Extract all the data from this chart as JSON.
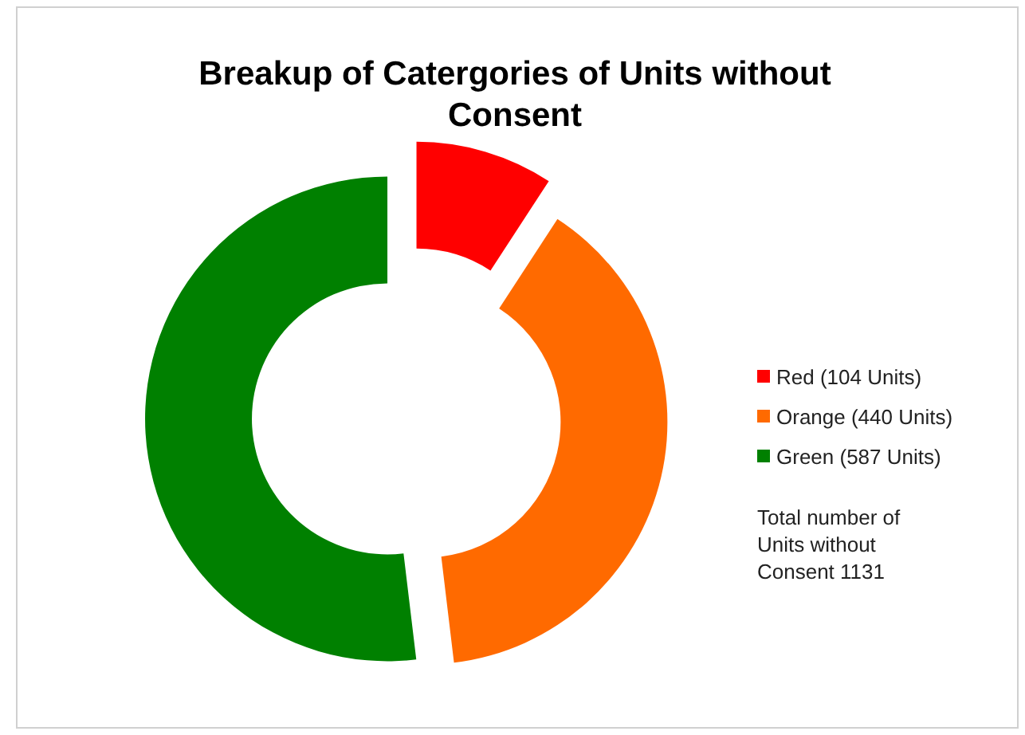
{
  "chart_data": {
    "type": "donut",
    "title": "Breakup of Catergories of Units without Consent",
    "categories": [
      "Red (104 Units)",
      "Orange (440 Units)",
      "Green (587 Units)"
    ],
    "values": [
      104,
      440,
      587
    ],
    "colors": [
      "#ff0000",
      "#ff6a00",
      "#008000"
    ],
    "legend": "right",
    "annotations": [
      "Total number of Units without Consent 1131"
    ]
  }
}
